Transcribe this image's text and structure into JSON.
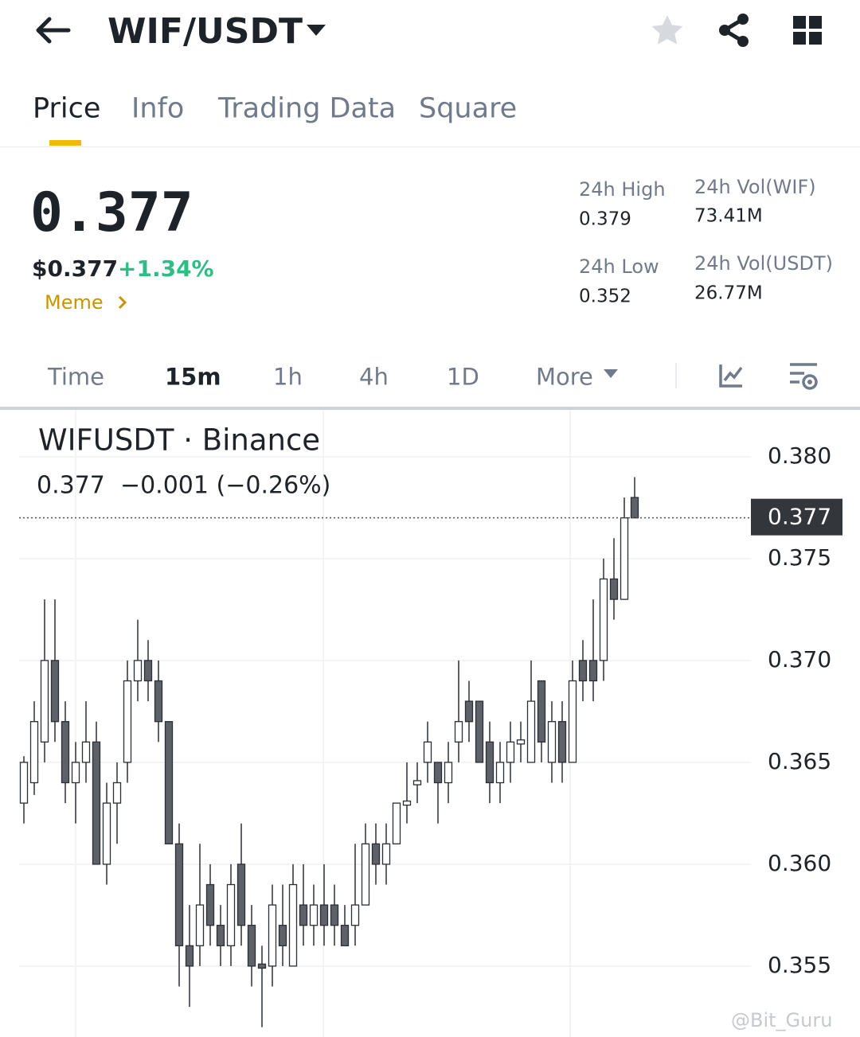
{
  "header": {
    "pair": "WIF/USDT"
  },
  "tabs": [
    "Price",
    "Info",
    "Trading Data",
    "Square"
  ],
  "ticker": {
    "price": "0.377",
    "usd_price": "$0.377",
    "change": "+1.34%",
    "tag": "Meme"
  },
  "stats": [
    {
      "label": "24h High",
      "value": "0.379"
    },
    {
      "label": "24h Vol(WIF)",
      "value": "73.41M"
    },
    {
      "label": "24h Low",
      "value": "0.352"
    },
    {
      "label": "24h Vol(USDT)",
      "value": "26.77M"
    }
  ],
  "timeframes": [
    "Time",
    "15m",
    "1h",
    "4h",
    "1D",
    "More"
  ],
  "watermark": "@Bit_Guru",
  "chart_data": {
    "type": "candlestick",
    "title": "WIFUSDT · Binance",
    "subtitle": "0.377  −0.001 (−0.26%)",
    "open": [
      0.363,
      0.364,
      0.366,
      0.37,
      0.367,
      0.364,
      0.365,
      0.366,
      0.36,
      0.363,
      0.365,
      0.369,
      0.37,
      0.369,
      0.367,
      0.361,
      0.356,
      0.356,
      0.359,
      0.357,
      0.356,
      0.36,
      0.357,
      0.3551,
      0.355,
      0.357,
      0.355,
      0.358,
      0.357,
      0.358,
      0.358,
      0.357,
      0.357,
      0.358,
      0.361,
      0.36,
      0.361,
      0.3629,
      0.3639,
      0.365,
      0.365,
      0.364,
      0.366,
      0.368,
      0.368,
      0.366,
      0.364,
      0.365,
      0.3659,
      0.365,
      0.369,
      0.365,
      0.367,
      0.365,
      0.37,
      0.37,
      0.37,
      0.374,
      0.373,
      0.378
    ],
    "high": [
      0.3653,
      0.368,
      0.373,
      0.373,
      0.368,
      0.366,
      0.368,
      0.367,
      0.364,
      0.365,
      0.37,
      0.372,
      0.371,
      0.37,
      0.367,
      0.362,
      0.358,
      0.361,
      0.36,
      0.358,
      0.36,
      0.362,
      0.358,
      0.356,
      0.359,
      0.359,
      0.36,
      0.36,
      0.359,
      0.36,
      0.359,
      0.358,
      0.361,
      0.362,
      0.362,
      0.362,
      0.363,
      0.365,
      0.365,
      0.367,
      0.365,
      0.366,
      0.37,
      0.369,
      0.368,
      0.367,
      0.366,
      0.367,
      0.367,
      0.37,
      0.369,
      0.368,
      0.368,
      0.37,
      0.371,
      0.373,
      0.375,
      0.376,
      0.378,
      0.379
    ],
    "low": [
      0.362,
      0.3634,
      0.365,
      0.366,
      0.363,
      0.362,
      0.364,
      0.36,
      0.359,
      0.361,
      0.364,
      0.368,
      0.368,
      0.366,
      0.361,
      0.354,
      0.353,
      0.355,
      0.356,
      0.355,
      0.355,
      0.356,
      0.354,
      0.352,
      0.354,
      0.355,
      0.355,
      0.356,
      0.356,
      0.356,
      0.356,
      0.356,
      0.356,
      0.358,
      0.359,
      0.359,
      0.361,
      0.362,
      0.363,
      0.364,
      0.362,
      0.363,
      0.365,
      0.366,
      0.365,
      0.363,
      0.363,
      0.364,
      0.365,
      0.365,
      0.365,
      0.364,
      0.364,
      0.365,
      0.368,
      0.368,
      0.369,
      0.372,
      0.373,
      0.377
    ],
    "close": [
      0.365,
      0.367,
      0.37,
      0.367,
      0.364,
      0.365,
      0.366,
      0.36,
      0.363,
      0.364,
      0.369,
      0.37,
      0.369,
      0.367,
      0.361,
      0.356,
      0.355,
      0.358,
      0.357,
      0.356,
      0.359,
      0.357,
      0.355,
      0.3549,
      0.358,
      0.356,
      0.359,
      0.357,
      0.358,
      0.357,
      0.357,
      0.356,
      0.358,
      0.361,
      0.36,
      0.361,
      0.363,
      0.3631,
      0.3641,
      0.366,
      0.364,
      0.365,
      0.367,
      0.367,
      0.365,
      0.364,
      0.365,
      0.366,
      0.3661,
      0.368,
      0.366,
      0.367,
      0.365,
      0.369,
      0.369,
      0.369,
      0.374,
      0.373,
      0.377,
      0.377
    ],
    "up_color": "#ffffff",
    "down_color": "#5f6168",
    "last_price": 0.377,
    "ylim": [
      0.35152,
      0.3823
    ],
    "yticks": [
      {
        "value": 0.38,
        "label": "0.380"
      },
      0.375,
      {
        "value": 0.37,
        "label": "0.370"
      },
      0.365,
      {
        "value": 0.36,
        "label": "0.360"
      },
      0.355
    ],
    "grid": true
  }
}
